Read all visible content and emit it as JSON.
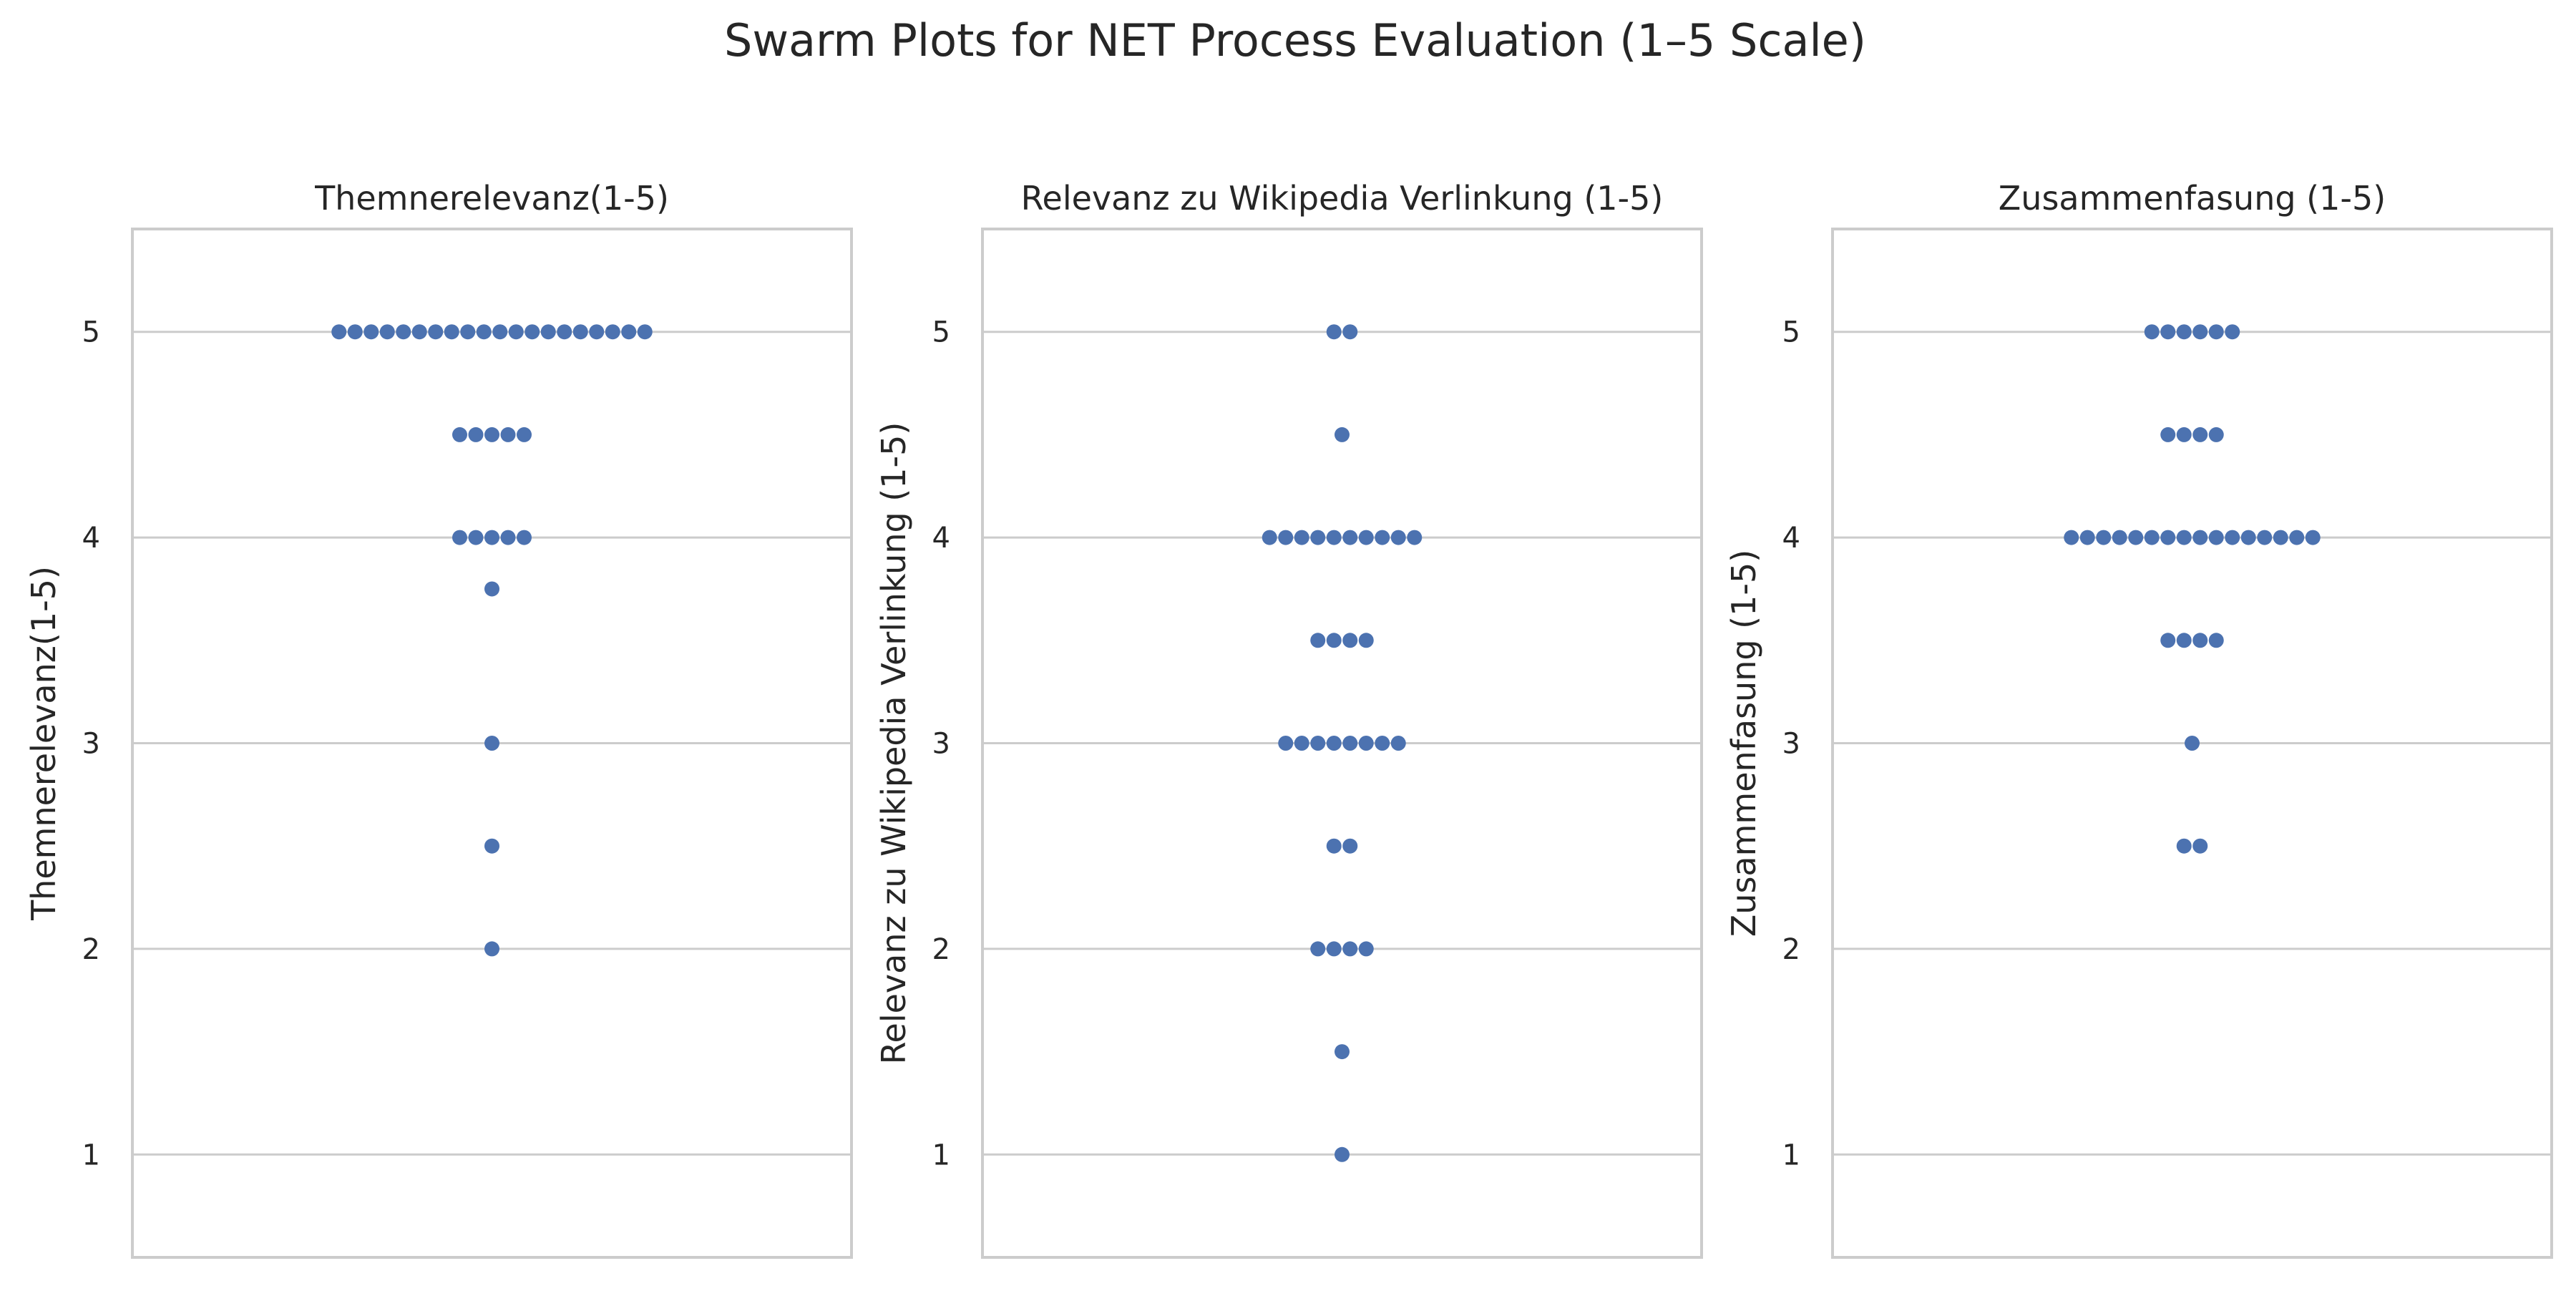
{
  "figure": {
    "title": "Swarm Plots for NET Process Evaluation (1–5 Scale)"
  },
  "chart_data": [
    {
      "type": "scatter",
      "subtype": "swarm",
      "title": "Themnerelevanz(1-5)",
      "xlabel": "",
      "ylabel": "Themnerelevanz(1-5)",
      "ylim": [
        0.5,
        5.5
      ],
      "yticks": [
        1,
        2,
        3,
        4,
        5
      ],
      "grid": "horizontal",
      "color": "#4c72b0",
      "values": [
        5,
        5,
        5,
        5,
        5,
        5,
        5,
        5,
        5,
        5,
        5,
        5,
        5,
        5,
        5,
        5,
        5,
        5,
        5,
        5,
        4.5,
        4.5,
        4.5,
        4.5,
        4.5,
        4,
        4,
        4,
        4,
        4,
        3.75,
        3,
        2.5,
        2
      ]
    },
    {
      "type": "scatter",
      "subtype": "swarm",
      "title": "Relevanz zu Wikipedia Verlinkung (1-5)",
      "xlabel": "",
      "ylabel": "Relevanz zu Wikipedia Verlinkung (1-5)",
      "ylim": [
        0.5,
        5.5
      ],
      "yticks": [
        1,
        2,
        3,
        4,
        5
      ],
      "grid": "horizontal",
      "color": "#4c72b0",
      "values": [
        5,
        5,
        4.5,
        4,
        4,
        4,
        4,
        4,
        4,
        4,
        4,
        4,
        4,
        3.5,
        3.5,
        3.5,
        3.5,
        3,
        3,
        3,
        3,
        3,
        3,
        3,
        3,
        2.5,
        2.5,
        2,
        2,
        2,
        2,
        1.5,
        1
      ]
    },
    {
      "type": "scatter",
      "subtype": "swarm",
      "title": "Zusammenfasung (1-5)",
      "xlabel": "",
      "ylabel": "Zusammenfasung (1-5)",
      "ylim": [
        0.5,
        5.5
      ],
      "yticks": [
        1,
        2,
        3,
        4,
        5
      ],
      "grid": "horizontal",
      "color": "#4c72b0",
      "values": [
        5,
        5,
        5,
        5,
        5,
        5,
        4.5,
        4.5,
        4.5,
        4.5,
        4,
        4,
        4,
        4,
        4,
        4,
        4,
        4,
        4,
        4,
        4,
        4,
        4,
        4,
        4,
        4,
        3.5,
        3.5,
        3.5,
        3.5,
        3,
        2.5,
        2.5
      ]
    }
  ]
}
